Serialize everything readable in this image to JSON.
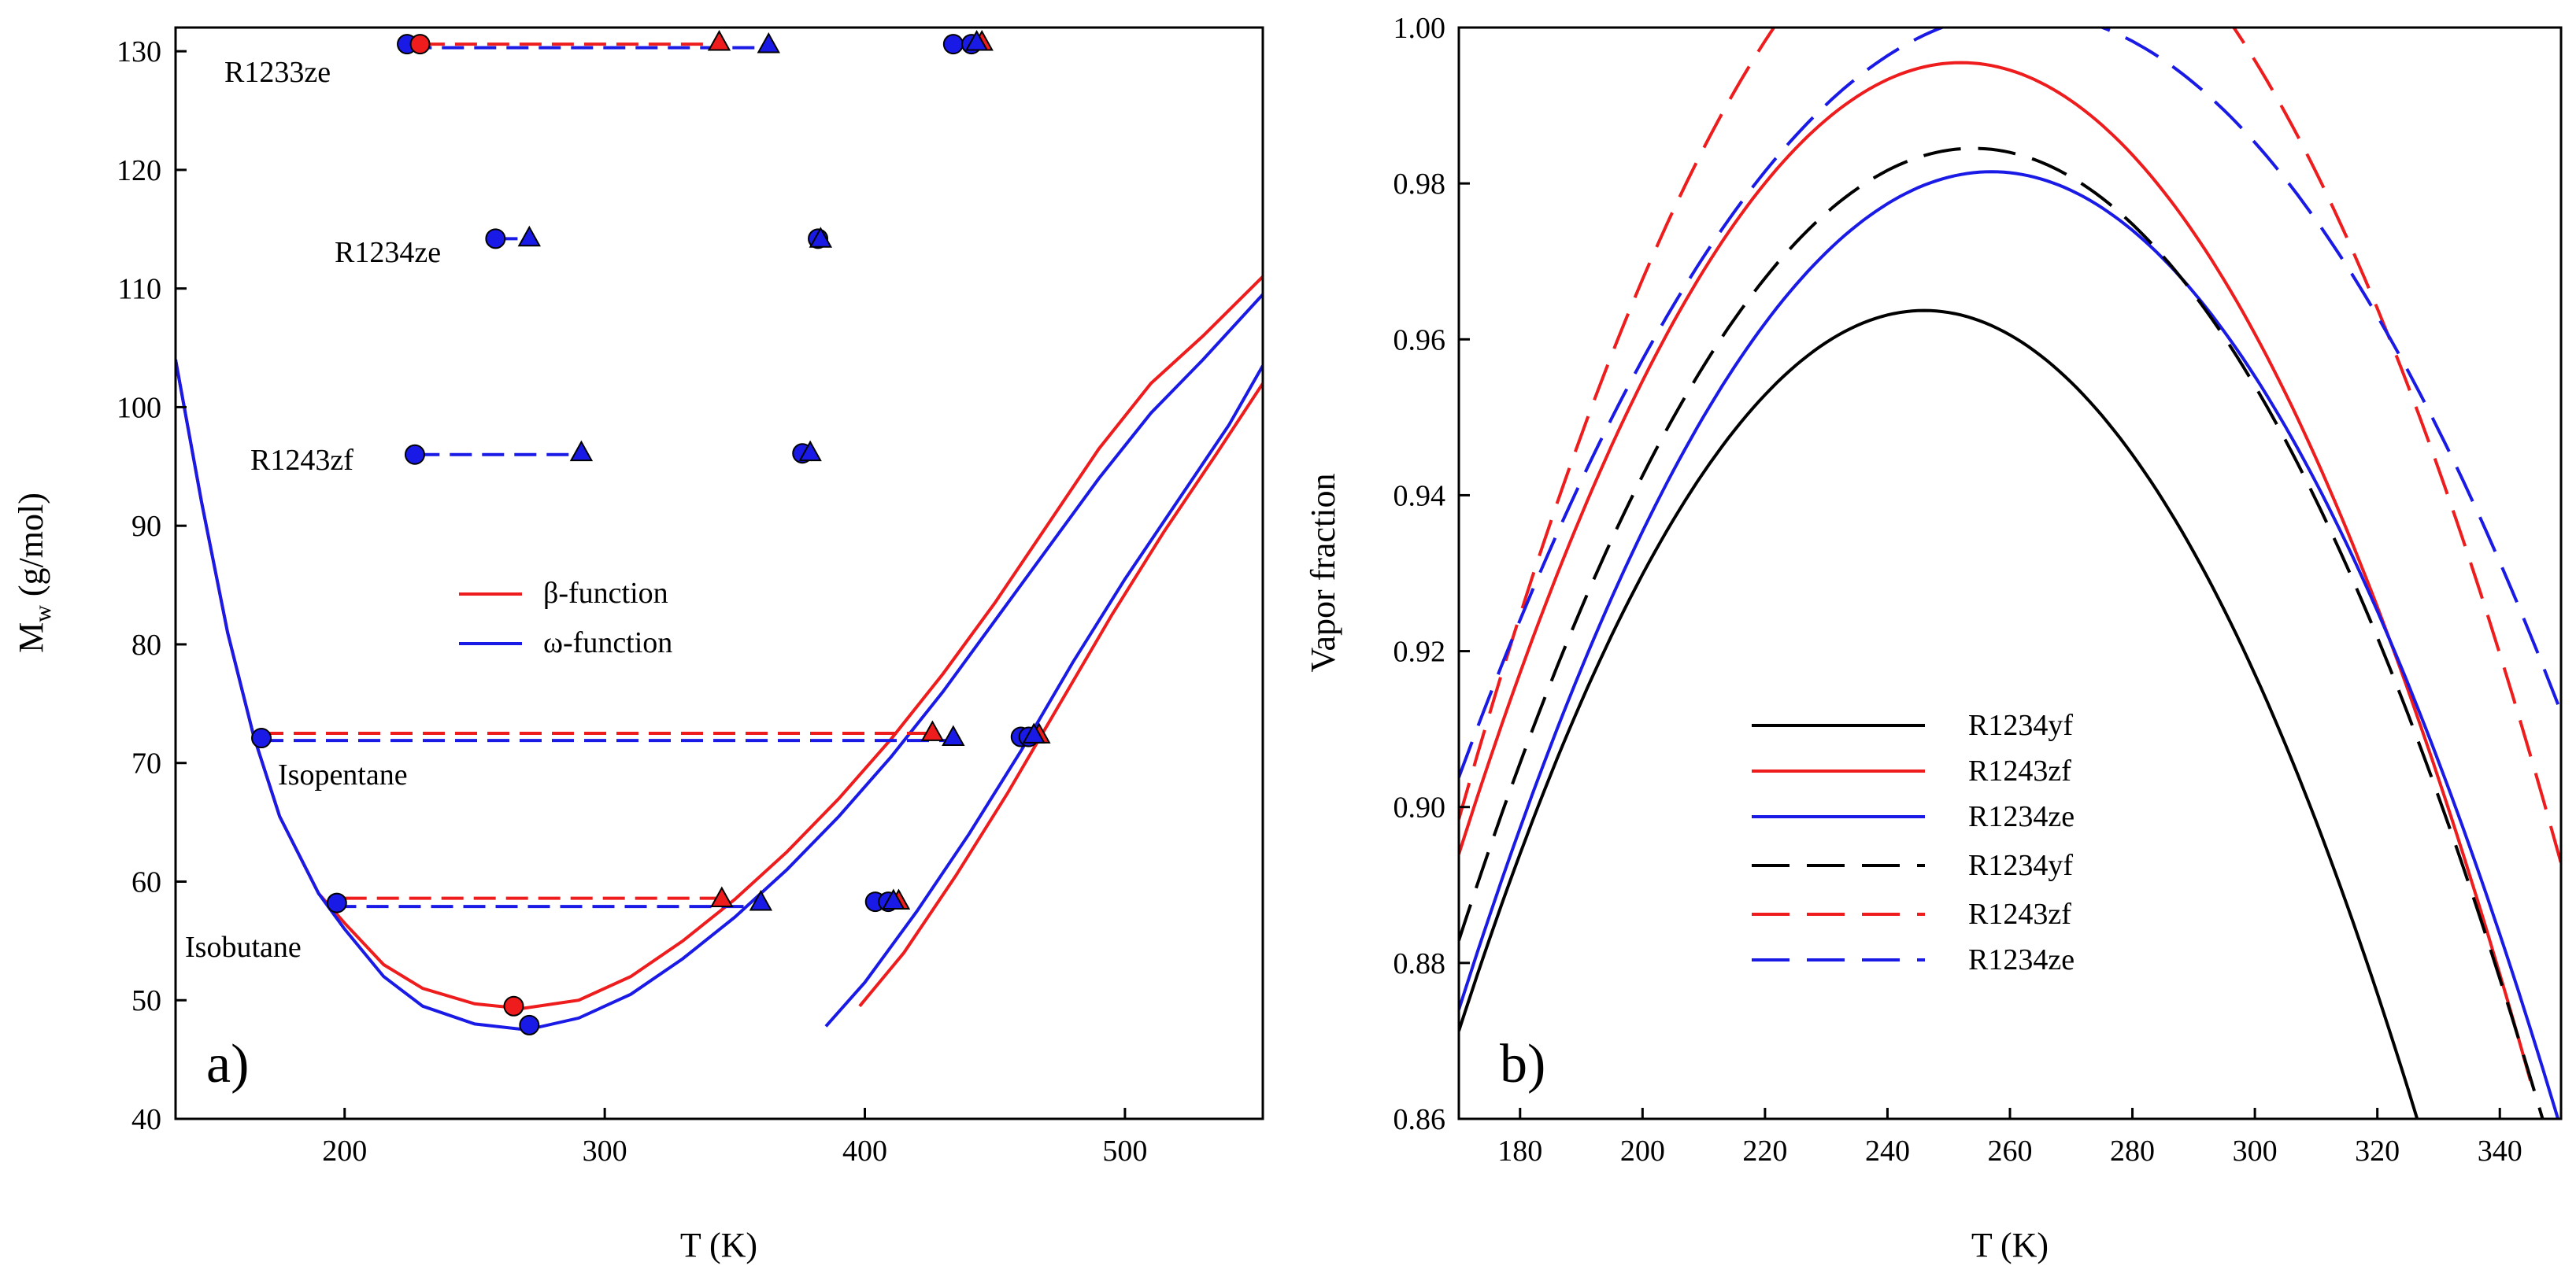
{
  "chart_data": [
    {
      "type": "line",
      "panel_label": "a)",
      "xlabel": "T (K)",
      "ylabel": "M",
      "ylabel_sub": "w",
      "ylabel_unit": " (g/mol)",
      "xlim": [
        135,
        553
      ],
      "ylim": [
        40,
        132
      ],
      "xticks": [
        200,
        300,
        400,
        500
      ],
      "yticks": [
        40,
        50,
        60,
        70,
        80,
        90,
        100,
        110,
        120,
        130
      ],
      "legend": [
        {
          "label": "β-function",
          "color": "#ee1c1c"
        },
        {
          "label": "ω-function",
          "color": "#1a1ae6"
        }
      ],
      "annotations": [
        {
          "text": "R1233ze",
          "x": 155,
          "y": 129
        },
        {
          "text": "R1234ze",
          "x": 197,
          "y": 113.7
        },
        {
          "text": "R1243zf",
          "x": 150,
          "y": 95.6
        },
        {
          "text": "Isopentane",
          "x": 171,
          "y": 69.4
        },
        {
          "text": "Isobutane",
          "x": 138,
          "y": 55.2
        }
      ],
      "series": [
        {
          "name": "β-function envelope",
          "color": "#ee1c1c",
          "dash": false,
          "points": [
            [
              135,
              104
            ],
            [
              145,
              92
            ],
            [
              155,
              81
            ],
            [
              165,
              72.3
            ],
            [
              175,
              65.5
            ],
            [
              190,
              59
            ],
            [
              200,
              56.5
            ],
            [
              215,
              53
            ],
            [
              230,
              51
            ],
            [
              250,
              49.7
            ],
            [
              268,
              49.3
            ],
            [
              290,
              50
            ],
            [
              310,
              52
            ],
            [
              330,
              55
            ],
            [
              350,
              58.5
            ],
            [
              370,
              62.5
            ],
            [
              390,
              67
            ],
            [
              410,
              72
            ],
            [
              430,
              77.5
            ],
            [
              450,
              83.5
            ],
            [
              470,
              90
            ],
            [
              490,
              96.5
            ],
            [
              510,
              102
            ],
            [
              530,
              106
            ],
            [
              553,
              111
            ]
          ]
        },
        {
          "name": "ω-function envelope",
          "color": "#1a1ae6",
          "dash": false,
          "points": [
            [
              135,
              104
            ],
            [
              145,
              92
            ],
            [
              155,
              81
            ],
            [
              165,
              72.3
            ],
            [
              175,
              65.5
            ],
            [
              190,
              59
            ],
            [
              200,
              56
            ],
            [
              215,
              52
            ],
            [
              230,
              49.5
            ],
            [
              250,
              48
            ],
            [
              270,
              47.5
            ],
            [
              290,
              48.5
            ],
            [
              310,
              50.5
            ],
            [
              330,
              53.5
            ],
            [
              350,
              57
            ],
            [
              370,
              61
            ],
            [
              390,
              65.5
            ],
            [
              410,
              70.5
            ],
            [
              430,
              76
            ],
            [
              450,
              82
            ],
            [
              470,
              88
            ],
            [
              490,
              94
            ],
            [
              510,
              99.5
            ],
            [
              530,
              104
            ],
            [
              553,
              109.5
            ]
          ]
        },
        {
          "name": "ω-function branch",
          "color": "#1a1ae6",
          "dash": false,
          "points": [
            [
              385,
              47.8
            ],
            [
              400,
              51.5
            ],
            [
              420,
              57.5
            ],
            [
              440,
              64
            ],
            [
              460,
              71
            ],
            [
              480,
              78.5
            ],
            [
              500,
              85.5
            ],
            [
              520,
              92
            ],
            [
              540,
              98.5
            ],
            [
              553,
              103.5
            ]
          ]
        },
        {
          "name": "β-function branch",
          "color": "#ee1c1c",
          "dash": false,
          "points": [
            [
              398,
              49.5
            ],
            [
              415,
              54
            ],
            [
              435,
              60.5
            ],
            [
              455,
              67.5
            ],
            [
              475,
              75
            ],
            [
              495,
              82.5
            ],
            [
              515,
              89.5
            ],
            [
              535,
              96
            ],
            [
              553,
              102
            ]
          ]
        },
        {
          "name": "R1233ze β tie",
          "color": "#ee1c1c",
          "dash": true,
          "points": [
            [
              230,
              130.6
            ],
            [
              345,
              130.6
            ]
          ]
        },
        {
          "name": "R1233ze ω tie",
          "color": "#1a1ae6",
          "dash": true,
          "points": [
            [
              225,
              130.3
            ],
            [
              363,
              130.3
            ]
          ]
        },
        {
          "name": "R1234ze ω tie",
          "color": "#1a1ae6",
          "dash": true,
          "points": [
            [
              258,
              114.2
            ],
            [
              270,
              114.2
            ]
          ]
        },
        {
          "name": "R1243zf ω tie",
          "color": "#1a1ae6",
          "dash": true,
          "points": [
            [
              228,
              96
            ],
            [
              291,
              96
            ]
          ]
        },
        {
          "name": "Isopentane β tie",
          "color": "#ee1c1c",
          "dash": true,
          "points": [
            [
              168,
              72.5
            ],
            [
              426,
              72.5
            ]
          ]
        },
        {
          "name": "Isopentane ω tie",
          "color": "#1a1ae6",
          "dash": true,
          "points": [
            [
              168,
              71.9
            ],
            [
              434,
              71.9
            ]
          ]
        },
        {
          "name": "Isobutane β tie",
          "color": "#ee1c1c",
          "dash": true,
          "points": [
            [
              200,
              58.6
            ],
            [
              345,
              58.6
            ]
          ]
        },
        {
          "name": "Isobutane ω tie",
          "color": "#1a1ae6",
          "dash": true,
          "points": [
            [
              196,
              57.9
            ],
            [
              360,
              57.9
            ]
          ]
        }
      ],
      "markers": [
        {
          "shape": "circle",
          "color": "#1a1ae6",
          "x": 224,
          "y": 130.6
        },
        {
          "shape": "circle",
          "color": "#ee1c1c",
          "x": 229,
          "y": 130.6
        },
        {
          "shape": "triangle",
          "color": "#ee1c1c",
          "x": 344,
          "y": 130.8
        },
        {
          "shape": "triangle",
          "color": "#1a1ae6",
          "x": 363,
          "y": 130.6
        },
        {
          "shape": "circle",
          "color": "#1a1ae6",
          "x": 434,
          "y": 130.6
        },
        {
          "shape": "circle",
          "color": "#1a1ae6",
          "x": 441,
          "y": 130.6
        },
        {
          "shape": "triangle",
          "color": "#ee1c1c",
          "x": 445,
          "y": 130.8
        },
        {
          "shape": "triangle",
          "color": "#1a1ae6",
          "x": 443,
          "y": 130.8
        },
        {
          "shape": "circle",
          "color": "#1a1ae6",
          "x": 258,
          "y": 114.2
        },
        {
          "shape": "triangle",
          "color": "#1a1ae6",
          "x": 271,
          "y": 114.3
        },
        {
          "shape": "circle",
          "color": "#1a1ae6",
          "x": 382,
          "y": 114.2
        },
        {
          "shape": "triangle",
          "color": "#1a1ae6",
          "x": 383,
          "y": 114.2
        },
        {
          "shape": "circle",
          "color": "#1a1ae6",
          "x": 227,
          "y": 96
        },
        {
          "shape": "triangle",
          "color": "#1a1ae6",
          "x": 291,
          "y": 96.2
        },
        {
          "shape": "circle",
          "color": "#1a1ae6",
          "x": 376,
          "y": 96.1
        },
        {
          "shape": "triangle",
          "color": "#1a1ae6",
          "x": 379,
          "y": 96.2
        },
        {
          "shape": "circle",
          "color": "#1a1ae6",
          "x": 168,
          "y": 72.1
        },
        {
          "shape": "triangle",
          "color": "#ee1c1c",
          "x": 426,
          "y": 72.6
        },
        {
          "shape": "triangle",
          "color": "#1a1ae6",
          "x": 434,
          "y": 72.2
        },
        {
          "shape": "circle",
          "color": "#1a1ae6",
          "x": 460,
          "y": 72.2
        },
        {
          "shape": "circle",
          "color": "#1a1ae6",
          "x": 463,
          "y": 72.2
        },
        {
          "shape": "triangle",
          "color": "#ee1c1c",
          "x": 467,
          "y": 72.4
        },
        {
          "shape": "triangle",
          "color": "#1a1ae6",
          "x": 465,
          "y": 72.4
        },
        {
          "shape": "circle",
          "color": "#1a1ae6",
          "x": 197,
          "y": 58.2
        },
        {
          "shape": "triangle",
          "color": "#ee1c1c",
          "x": 345,
          "y": 58.6
        },
        {
          "shape": "triangle",
          "color": "#1a1ae6",
          "x": 360,
          "y": 58.3
        },
        {
          "shape": "circle",
          "color": "#1a1ae6",
          "x": 404,
          "y": 58.3
        },
        {
          "shape": "circle",
          "color": "#1a1ae6",
          "x": 409,
          "y": 58.3
        },
        {
          "shape": "triangle",
          "color": "#ee1c1c",
          "x": 413,
          "y": 58.4
        },
        {
          "shape": "triangle",
          "color": "#1a1ae6",
          "x": 411,
          "y": 58.4
        },
        {
          "shape": "circle",
          "color": "#ee1c1c",
          "x": 265,
          "y": 49.5
        },
        {
          "shape": "circle",
          "color": "#1a1ae6",
          "x": 271,
          "y": 47.9
        }
      ]
    },
    {
      "type": "line",
      "panel_label": "b)",
      "xlabel": "T (K)",
      "ylabel": "Vapor fraction",
      "xlim": [
        170,
        350
      ],
      "ylim": [
        0.86,
        1.0
      ],
      "xticks": [
        180,
        200,
        220,
        240,
        260,
        280,
        300,
        320,
        340
      ],
      "yticks": [
        0.86,
        0.88,
        0.9,
        0.92,
        0.94,
        0.96,
        0.98,
        1.0
      ],
      "series": [
        {
          "name": "R1234yf",
          "color": "#000000",
          "dash": false,
          "peak_x": 246,
          "peak_y": 0.9637,
          "a": 1.6e-05,
          "xmin": 170,
          "xmax": 329
        },
        {
          "name": "R1243zf",
          "color": "#ee1c1c",
          "dash": false,
          "peak_x": 252,
          "peak_y": 0.9955,
          "a": 1.51e-05,
          "xmin": 170,
          "xmax": 345
        },
        {
          "name": "R1234ze",
          "color": "#1a1ae6",
          "dash": false,
          "peak_x": 257,
          "peak_y": 0.9815,
          "a": 1.42e-05,
          "xmin": 170,
          "xmax": 350
        },
        {
          "name": "R1234yf",
          "color": "#000000",
          "dash": true,
          "peak_x": 254,
          "peak_y": 0.9845,
          "a": 1.44e-05,
          "xmin": 170,
          "xmax": 349
        },
        {
          "name": "R1243zf",
          "color": "#ee1c1c",
          "dash": true,
          "peak_x": 259,
          "peak_y": 1.022,
          "a": 1.56e-05,
          "xmin": 170,
          "xmax": 350
        },
        {
          "name": "R1234ze",
          "color": "#1a1ae6",
          "dash": true,
          "peak_x": 262,
          "peak_y": 1.002,
          "a": 1.16e-05,
          "xmin": 170,
          "xmax": 350
        }
      ]
    }
  ]
}
